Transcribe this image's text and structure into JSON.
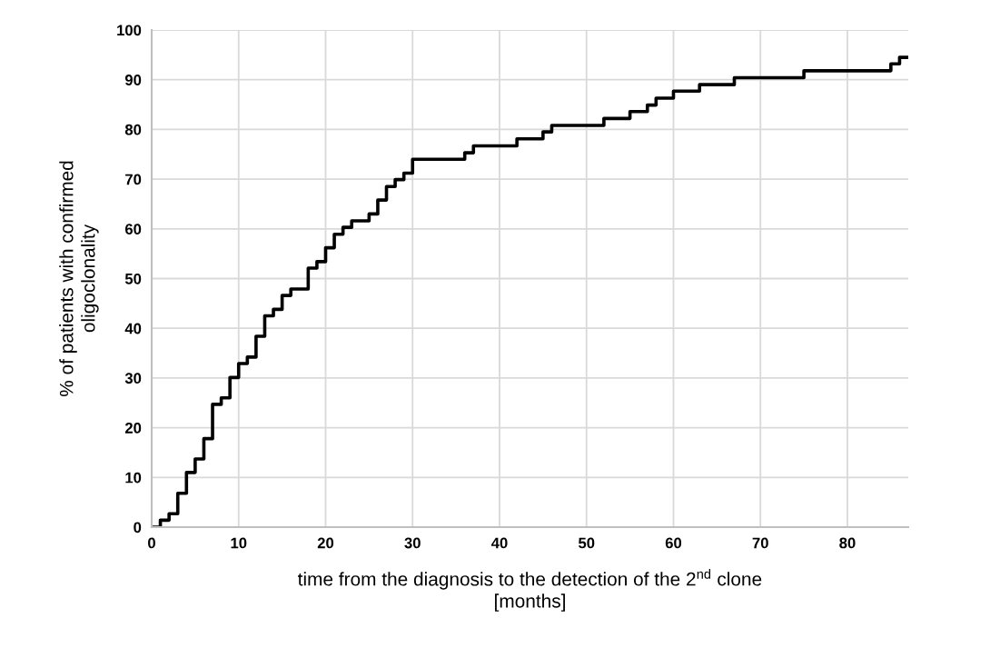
{
  "chart_data": {
    "type": "step",
    "xlabel": "time from the diagnosis to the detection of the 2$^{nd}$ clone\n[months]",
    "ylabel": "% of patients with confirmed\noligoclonality",
    "x": [
      0,
      1,
      2,
      3,
      4,
      5,
      6,
      7,
      8,
      9,
      10,
      11,
      12,
      13,
      14,
      15,
      16,
      18,
      19,
      20,
      21,
      22,
      23,
      25,
      26,
      27,
      28,
      29,
      30,
      36,
      37,
      42,
      45,
      46,
      52,
      55,
      57,
      58,
      60,
      63,
      67,
      75,
      85,
      86,
      87
    ],
    "series": [
      {
        "color": "#000000",
        "values": [
          0,
          1.4,
          2.7,
          6.8,
          11,
          13.7,
          17.8,
          24.7,
          26,
          30.1,
          32.9,
          34.2,
          38.4,
          42.5,
          43.8,
          46.6,
          47.9,
          52.1,
          53.4,
          56.2,
          58.9,
          60.3,
          61.6,
          63,
          65.8,
          68.5,
          69.9,
          71.2,
          74,
          75.3,
          76.7,
          78.1,
          79.5,
          80.8,
          82.2,
          83.6,
          84.9,
          86.3,
          87.7,
          89,
          90.4,
          91.8,
          93.2,
          94.5,
          94.5
        ]
      }
    ],
    "xlim": [
      0,
      87
    ],
    "xticks": [
      0,
      10,
      20,
      30,
      40,
      50,
      60,
      70,
      80
    ],
    "ylim": [
      0,
      100
    ],
    "yticks": [
      0,
      10,
      20,
      30,
      40,
      50,
      60,
      70,
      80,
      90,
      100
    ],
    "grid": true,
    "marker": "none",
    "line_style": "solid"
  }
}
